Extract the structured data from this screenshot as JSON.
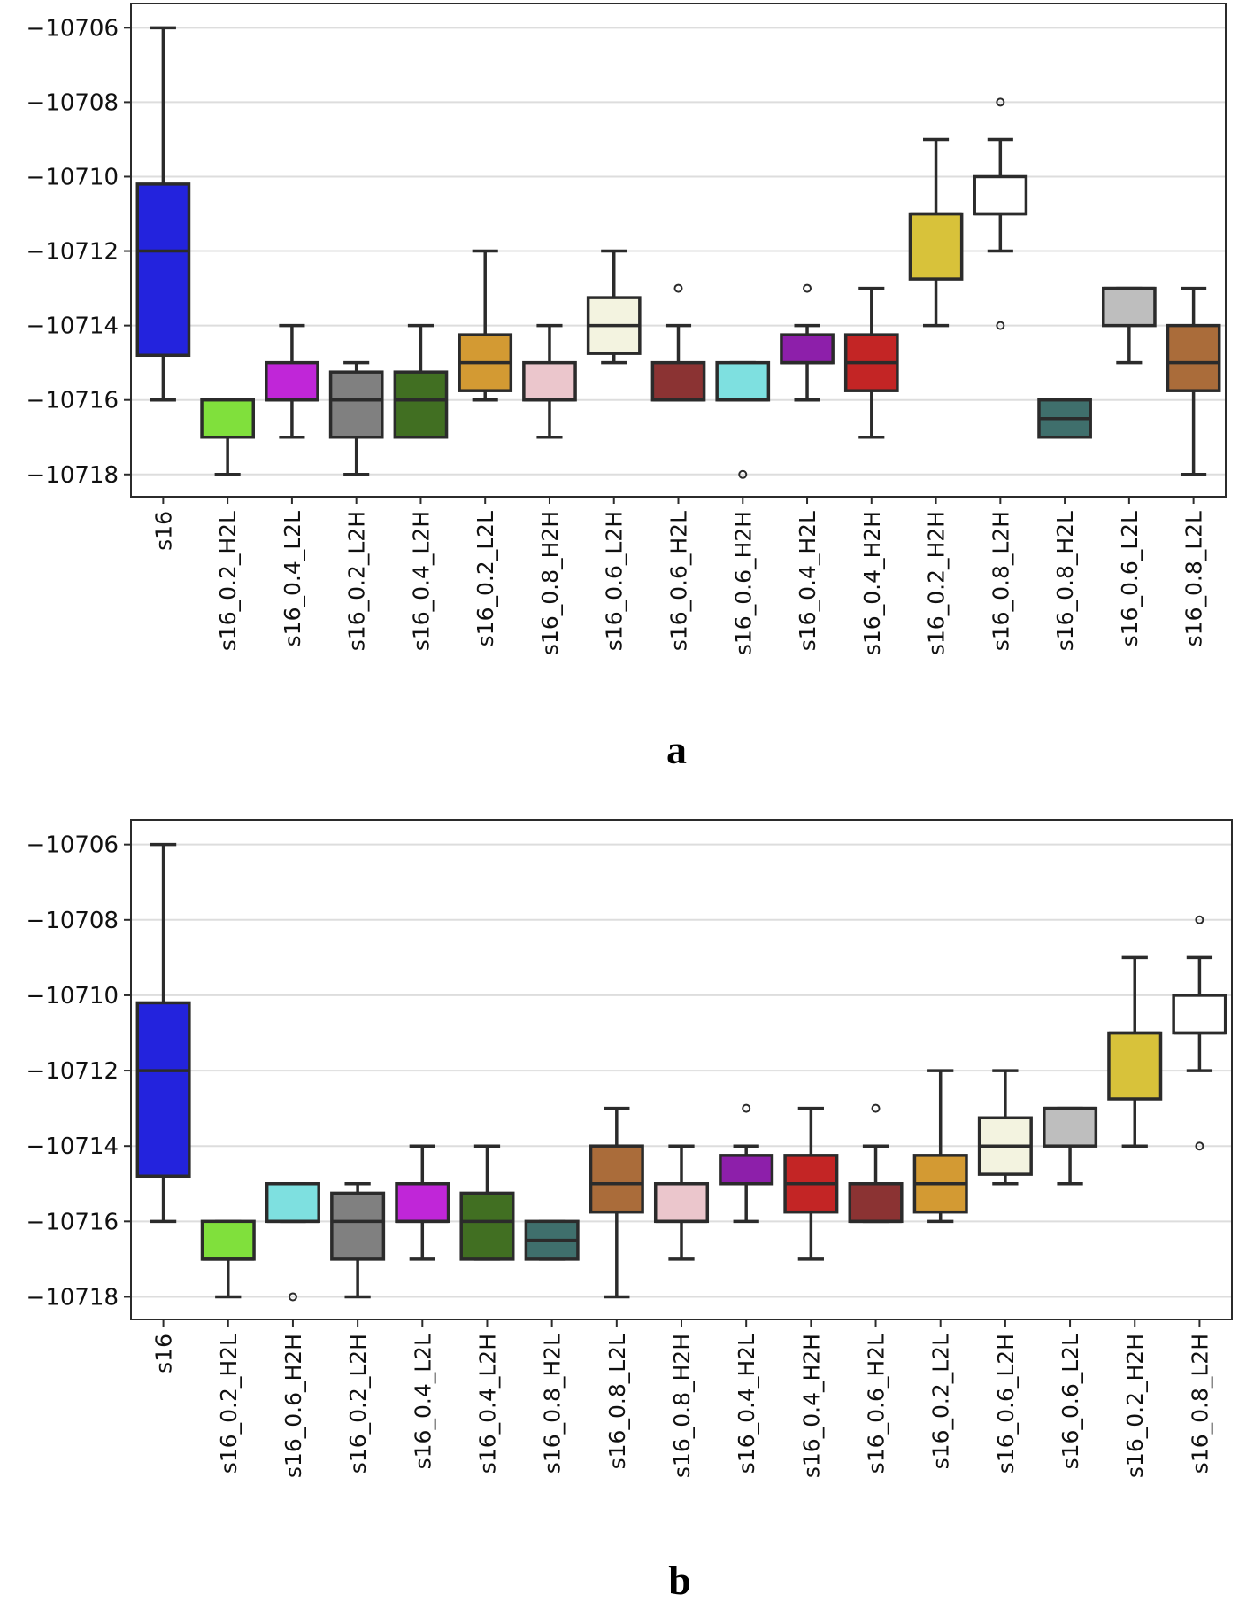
{
  "chart_data": [
    {
      "type": "box",
      "panel": "a",
      "title": "",
      "xlabel": "",
      "ylabel": "",
      "ylim": [
        -10718.6,
        -10705.35
      ],
      "yticks": [
        -10706,
        -10708,
        -10710,
        -10712,
        -10714,
        -10716,
        -10718
      ],
      "grid": "horizontal",
      "boxes": [
        {
          "label": "s16",
          "color": "#2323dd",
          "whislo": -10716,
          "q1": -10714.8,
          "med": -10712,
          "q3": -10710.2,
          "whishi": -10706,
          "fliers": []
        },
        {
          "label": "s16_0.2_H2L",
          "color": "#80e03c",
          "whislo": -10718,
          "q1": -10717,
          "med": -10717,
          "q3": -10716,
          "whishi": -10716,
          "fliers": []
        },
        {
          "label": "s16_0.4_L2L",
          "color": "#c026d8",
          "whislo": -10717,
          "q1": -10716,
          "med": -10716,
          "q3": -10715,
          "whishi": -10714,
          "fliers": []
        },
        {
          "label": "s16_0.2_L2H",
          "color": "#808080",
          "whislo": -10718,
          "q1": -10717,
          "med": -10716,
          "q3": -10715.25,
          "whishi": -10715,
          "fliers": []
        },
        {
          "label": "s16_0.4_L2H",
          "color": "#416f22",
          "whislo": -10717,
          "q1": -10717,
          "med": -10716,
          "q3": -10715.25,
          "whishi": -10714,
          "fliers": []
        },
        {
          "label": "s16_0.2_L2L",
          "color": "#d39a33",
          "whislo": -10716,
          "q1": -10715.75,
          "med": -10715,
          "q3": -10714.25,
          "whishi": -10712,
          "fliers": []
        },
        {
          "label": "s16_0.8_H2H",
          "color": "#ebc6cc",
          "whislo": -10717,
          "q1": -10716,
          "med": -10716,
          "q3": -10715,
          "whishi": -10714,
          "fliers": []
        },
        {
          "label": "s16_0.6_L2H",
          "color": "#f3f3e0",
          "whislo": -10715,
          "q1": -10714.75,
          "med": -10714,
          "q3": -10713.25,
          "whishi": -10712,
          "fliers": []
        },
        {
          "label": "s16_0.6_H2L",
          "color": "#8b3333",
          "whislo": -10716,
          "q1": -10716,
          "med": -10716,
          "q3": -10715,
          "whishi": -10714,
          "fliers": [
            -10713
          ]
        },
        {
          "label": "s16_0.6_H2H",
          "color": "#7ee0e0",
          "whislo": -10716,
          "q1": -10716,
          "med": -10716,
          "q3": -10715,
          "whishi": -10715,
          "fliers": [
            -10718
          ]
        },
        {
          "label": "s16_0.4_H2L",
          "color": "#8d1faa",
          "whislo": -10716,
          "q1": -10715,
          "med": -10715,
          "q3": -10714.25,
          "whishi": -10714,
          "fliers": [
            -10713
          ]
        },
        {
          "label": "s16_0.4_H2H",
          "color": "#c32525",
          "whislo": -10717,
          "q1": -10715.75,
          "med": -10715,
          "q3": -10714.25,
          "whishi": -10713,
          "fliers": []
        },
        {
          "label": "s16_0.2_H2H",
          "color": "#d8c23a",
          "whislo": -10714,
          "q1": -10712.75,
          "med": -10711,
          "q3": -10711,
          "whishi": -10709,
          "fliers": []
        },
        {
          "label": "s16_0.8_L2H",
          "color": "#ffffff",
          "whislo": -10712,
          "q1": -10711,
          "med": -10711,
          "q3": -10710,
          "whishi": -10709,
          "fliers": [
            -10708,
            -10714
          ]
        },
        {
          "label": "s16_0.8_H2L",
          "color": "#3f6f6c",
          "whislo": -10717,
          "q1": -10717,
          "med": -10716.5,
          "q3": -10716,
          "whishi": -10716,
          "fliers": []
        },
        {
          "label": "s16_0.6_L2L",
          "color": "#bebebe",
          "whislo": -10715,
          "q1": -10714,
          "med": -10713,
          "q3": -10713,
          "whishi": -10713,
          "fliers": []
        },
        {
          "label": "s16_0.8_L2L",
          "color": "#aa6c3a",
          "whislo": -10718,
          "q1": -10715.75,
          "med": -10715,
          "q3": -10714,
          "whishi": -10713,
          "fliers": []
        }
      ]
    },
    {
      "type": "box",
      "panel": "b",
      "title": "",
      "xlabel": "",
      "ylabel": "",
      "ylim": [
        -10718.6,
        -10705.35
      ],
      "yticks": [
        -10706,
        -10708,
        -10710,
        -10712,
        -10714,
        -10716,
        -10718
      ],
      "grid": "horizontal",
      "boxes": [
        {
          "label": "s16",
          "color": "#2323dd",
          "whislo": -10716,
          "q1": -10714.8,
          "med": -10712,
          "q3": -10710.2,
          "whishi": -10706,
          "fliers": []
        },
        {
          "label": "s16_0.2_H2L",
          "color": "#80e03c",
          "whislo": -10718,
          "q1": -10717,
          "med": -10717,
          "q3": -10716,
          "whishi": -10716,
          "fliers": []
        },
        {
          "label": "s16_0.6_H2H",
          "color": "#7ee0e0",
          "whislo": -10716,
          "q1": -10716,
          "med": -10716,
          "q3": -10715,
          "whishi": -10715,
          "fliers": [
            -10718
          ]
        },
        {
          "label": "s16_0.2_L2H",
          "color": "#808080",
          "whislo": -10718,
          "q1": -10717,
          "med": -10716,
          "q3": -10715.25,
          "whishi": -10715,
          "fliers": []
        },
        {
          "label": "s16_0.4_L2L",
          "color": "#c026d8",
          "whislo": -10717,
          "q1": -10716,
          "med": -10716,
          "q3": -10715,
          "whishi": -10714,
          "fliers": []
        },
        {
          "label": "s16_0.4_L2H",
          "color": "#416f22",
          "whislo": -10717,
          "q1": -10717,
          "med": -10716,
          "q3": -10715.25,
          "whishi": -10714,
          "fliers": []
        },
        {
          "label": "s16_0.8_H2L",
          "color": "#3f6f6c",
          "whislo": -10717,
          "q1": -10717,
          "med": -10716.5,
          "q3": -10716,
          "whishi": -10716,
          "fliers": []
        },
        {
          "label": "s16_0.8_L2L",
          "color": "#aa6c3a",
          "whislo": -10718,
          "q1": -10715.75,
          "med": -10715,
          "q3": -10714,
          "whishi": -10713,
          "fliers": []
        },
        {
          "label": "s16_0.8_H2H",
          "color": "#ebc6cc",
          "whislo": -10717,
          "q1": -10716,
          "med": -10716,
          "q3": -10715,
          "whishi": -10714,
          "fliers": []
        },
        {
          "label": "s16_0.4_H2L",
          "color": "#8d1faa",
          "whislo": -10716,
          "q1": -10715,
          "med": -10715,
          "q3": -10714.25,
          "whishi": -10714,
          "fliers": [
            -10713
          ]
        },
        {
          "label": "s16_0.4_H2H",
          "color": "#c32525",
          "whislo": -10717,
          "q1": -10715.75,
          "med": -10715,
          "q3": -10714.25,
          "whishi": -10713,
          "fliers": []
        },
        {
          "label": "s16_0.6_H2L",
          "color": "#8b3333",
          "whislo": -10716,
          "q1": -10716,
          "med": -10716,
          "q3": -10715,
          "whishi": -10714,
          "fliers": [
            -10713
          ]
        },
        {
          "label": "s16_0.2_L2L",
          "color": "#d39a33",
          "whislo": -10716,
          "q1": -10715.75,
          "med": -10715,
          "q3": -10714.25,
          "whishi": -10712,
          "fliers": []
        },
        {
          "label": "s16_0.6_L2H",
          "color": "#f3f3e0",
          "whislo": -10715,
          "q1": -10714.75,
          "med": -10714,
          "q3": -10713.25,
          "whishi": -10712,
          "fliers": []
        },
        {
          "label": "s16_0.6_L2L",
          "color": "#bebebe",
          "whislo": -10715,
          "q1": -10714,
          "med": -10713,
          "q3": -10713,
          "whishi": -10713,
          "fliers": []
        },
        {
          "label": "s16_0.2_H2H",
          "color": "#d8c23a",
          "whislo": -10714,
          "q1": -10712.75,
          "med": -10711,
          "q3": -10711,
          "whishi": -10709,
          "fliers": []
        },
        {
          "label": "s16_0.8_L2H",
          "color": "#ffffff",
          "whislo": -10712,
          "q1": -10711,
          "med": -10711,
          "q3": -10710,
          "whishi": -10709,
          "fliers": [
            -10708,
            -10714
          ]
        }
      ]
    }
  ],
  "colors": {
    "line": "#2b2b2b",
    "grid": "#dddddd"
  }
}
